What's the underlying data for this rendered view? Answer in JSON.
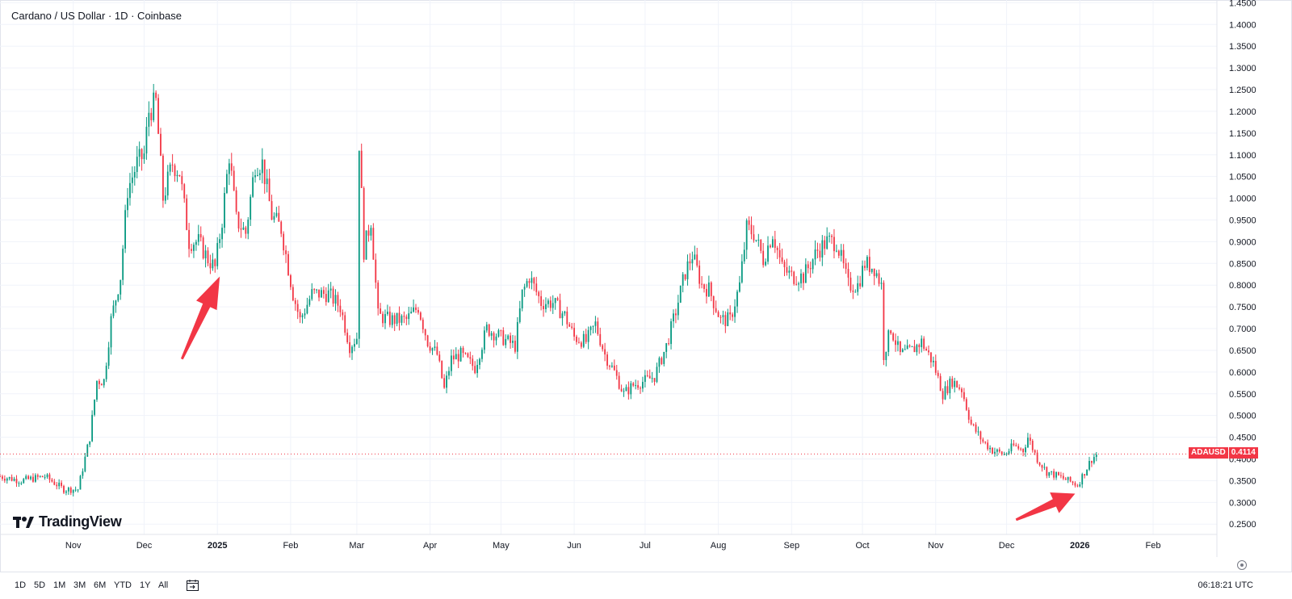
{
  "chart_data": {
    "type": "candlestick",
    "title": "Cardano / US Dollar · 1D · Coinbase",
    "symbol": "ADAUSD",
    "last_price": "0.4114",
    "y_ticks": [
      "1.4500",
      "1.4000",
      "1.3500",
      "1.3000",
      "1.2500",
      "1.2000",
      "1.1500",
      "1.1000",
      "1.0500",
      "1.0000",
      "0.9500",
      "0.9000",
      "0.8500",
      "0.8000",
      "0.7500",
      "0.7000",
      "0.6500",
      "0.6000",
      "0.5500",
      "0.5000",
      "0.4500",
      "0.4000",
      "0.3500",
      "0.3000",
      "0.2500"
    ],
    "x_ticks": [
      "Nov",
      "Dec",
      "2025",
      "Feb",
      "Mar",
      "Apr",
      "May",
      "Jun",
      "Jul",
      "Aug",
      "Sep",
      "Oct",
      "Nov",
      "Dec",
      "2026",
      "Feb"
    ],
    "ylim": [
      0.23,
      1.46
    ],
    "grid": true,
    "x_start": "2024-10-01",
    "x_end": "2026-02-28",
    "up_color": "#089981",
    "down_color": "#f23645",
    "price_path": [
      [
        "2024-10-01",
        0.36
      ],
      [
        "2024-10-10",
        0.35
      ],
      [
        "2024-10-20",
        0.36
      ],
      [
        "2024-10-28",
        0.33
      ],
      [
        "2024-11-03",
        0.33
      ],
      [
        "2024-11-08",
        0.45
      ],
      [
        "2024-11-11",
        0.58
      ],
      [
        "2024-11-14",
        0.58
      ],
      [
        "2024-11-17",
        0.72
      ],
      [
        "2024-11-21",
        0.82
      ],
      [
        "2024-11-24",
        1.02
      ],
      [
        "2024-11-28",
        1.08
      ],
      [
        "2024-12-01",
        1.1
      ],
      [
        "2024-12-03",
        1.2
      ],
      [
        "2024-12-06",
        1.22
      ],
      [
        "2024-12-09",
        1.0
      ],
      [
        "2024-12-13",
        1.08
      ],
      [
        "2024-12-16",
        1.06
      ],
      [
        "2024-12-20",
        0.9
      ],
      [
        "2024-12-24",
        0.9
      ],
      [
        "2024-12-28",
        0.86
      ],
      [
        "2024-12-31",
        0.84
      ],
      [
        "2025-01-03",
        0.95
      ],
      [
        "2025-01-06",
        1.1
      ],
      [
        "2025-01-09",
        0.95
      ],
      [
        "2025-01-13",
        0.92
      ],
      [
        "2025-01-17",
        1.08
      ],
      [
        "2025-01-20",
        1.08
      ],
      [
        "2025-01-24",
        0.96
      ],
      [
        "2025-01-28",
        0.93
      ],
      [
        "2025-02-02",
        0.78
      ],
      [
        "2025-02-05",
        0.72
      ],
      [
        "2025-02-10",
        0.78
      ],
      [
        "2025-02-17",
        0.78
      ],
      [
        "2025-02-22",
        0.75
      ],
      [
        "2025-02-26",
        0.66
      ],
      [
        "2025-03-01",
        0.68
      ],
      [
        "2025-03-02",
        1.13
      ],
      [
        "2025-03-04",
        0.88
      ],
      [
        "2025-03-07",
        0.95
      ],
      [
        "2025-03-10",
        0.73
      ],
      [
        "2025-03-15",
        0.72
      ],
      [
        "2025-03-22",
        0.72
      ],
      [
        "2025-03-27",
        0.75
      ],
      [
        "2025-03-31",
        0.67
      ],
      [
        "2025-04-04",
        0.64
      ],
      [
        "2025-04-07",
        0.56
      ],
      [
        "2025-04-10",
        0.63
      ],
      [
        "2025-04-14",
        0.64
      ],
      [
        "2025-04-20",
        0.61
      ],
      [
        "2025-04-25",
        0.7
      ],
      [
        "2025-05-01",
        0.68
      ],
      [
        "2025-05-07",
        0.66
      ],
      [
        "2025-05-10",
        0.78
      ],
      [
        "2025-05-13",
        0.82
      ],
      [
        "2025-05-18",
        0.76
      ],
      [
        "2025-05-23",
        0.76
      ],
      [
        "2025-05-28",
        0.73
      ],
      [
        "2025-06-01",
        0.68
      ],
      [
        "2025-06-06",
        0.67
      ],
      [
        "2025-06-10",
        0.71
      ],
      [
        "2025-06-14",
        0.64
      ],
      [
        "2025-06-18",
        0.6
      ],
      [
        "2025-06-22",
        0.55
      ],
      [
        "2025-06-26",
        0.57
      ],
      [
        "2025-07-01",
        0.58
      ],
      [
        "2025-07-05",
        0.59
      ],
      [
        "2025-07-10",
        0.66
      ],
      [
        "2025-07-14",
        0.74
      ],
      [
        "2025-07-18",
        0.83
      ],
      [
        "2025-07-21",
        0.87
      ],
      [
        "2025-07-25",
        0.8
      ],
      [
        "2025-07-28",
        0.79
      ],
      [
        "2025-08-02",
        0.72
      ],
      [
        "2025-08-06",
        0.72
      ],
      [
        "2025-08-10",
        0.8
      ],
      [
        "2025-08-13",
        0.93
      ],
      [
        "2025-08-16",
        0.92
      ],
      [
        "2025-08-20",
        0.86
      ],
      [
        "2025-08-24",
        0.92
      ],
      [
        "2025-08-28",
        0.84
      ],
      [
        "2025-09-01",
        0.82
      ],
      [
        "2025-09-06",
        0.82
      ],
      [
        "2025-09-12",
        0.88
      ],
      [
        "2025-09-16",
        0.9
      ],
      [
        "2025-09-20",
        0.9
      ],
      [
        "2025-09-25",
        0.8
      ],
      [
        "2025-09-29",
        0.8
      ],
      [
        "2025-10-02",
        0.85
      ],
      [
        "2025-10-06",
        0.84
      ],
      [
        "2025-10-09",
        0.8
      ],
      [
        "2025-10-10",
        0.64
      ],
      [
        "2025-10-13",
        0.7
      ],
      [
        "2025-10-17",
        0.64
      ],
      [
        "2025-10-22",
        0.65
      ],
      [
        "2025-10-26",
        0.67
      ],
      [
        "2025-10-31",
        0.62
      ],
      [
        "2025-11-04",
        0.55
      ],
      [
        "2025-11-08",
        0.58
      ],
      [
        "2025-11-12",
        0.56
      ],
      [
        "2025-11-16",
        0.48
      ],
      [
        "2025-11-21",
        0.44
      ],
      [
        "2025-11-25",
        0.42
      ],
      [
        "2025-11-30",
        0.41
      ],
      [
        "2025-12-04",
        0.43
      ],
      [
        "2025-12-08",
        0.42
      ],
      [
        "2025-12-10",
        0.45
      ],
      [
        "2025-12-14",
        0.4
      ],
      [
        "2025-12-18",
        0.37
      ],
      [
        "2025-12-23",
        0.36
      ],
      [
        "2025-12-27",
        0.35
      ],
      [
        "2025-12-31",
        0.34
      ],
      [
        "2026-01-03",
        0.37
      ],
      [
        "2026-01-06",
        0.4
      ],
      [
        "2026-01-08",
        0.41
      ]
    ],
    "annotations": [
      {
        "type": "arrow",
        "from": [
          "2024-12-17",
          0.63
        ],
        "to": [
          "2025-01-02",
          0.82
        ],
        "color": "#f23645"
      },
      {
        "type": "arrow",
        "from": [
          "2025-12-05",
          0.26
        ],
        "to": [
          "2025-12-30",
          0.32
        ],
        "color": "#f23645"
      }
    ]
  },
  "ui": {
    "ranges": [
      "1D",
      "5D",
      "1M",
      "3M",
      "6M",
      "YTD",
      "1Y",
      "All"
    ],
    "clock": "06:18:21 UTC",
    "logo": "TradingView"
  }
}
